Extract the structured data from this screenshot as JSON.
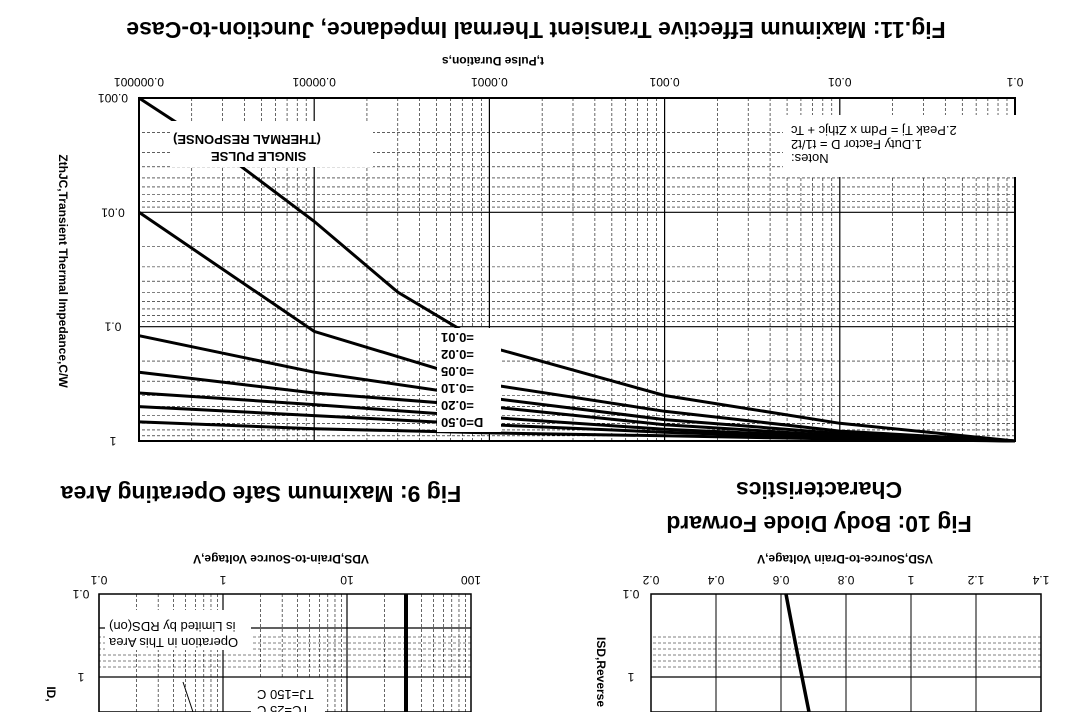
{
  "fig11": {
    "title": "Fig.11: Maximum Effective Transient Thermal Impedance, Junction-to-Case",
    "xlabel": "t,Pulse Duration,s",
    "ylabel": "ZthJC,Transient Thermal Impedance,C/W",
    "x_ticks": [
      "0.000001",
      "0.00001",
      "0.0001",
      "0.001",
      "0.01",
      "0.1"
    ],
    "y_ticks": [
      "0.001",
      "0.01",
      "0.1",
      "1"
    ],
    "single_pulse_1": "SINGLE PULSE",
    "single_pulse_2": "(THERMAL RESPONSE)",
    "notes_1": "Notes:",
    "notes_2": "1.Duty Factor D = t1/t2",
    "notes_3": "2.Peak Tj = Pdm x Zthjc + Tc",
    "duty_labels": [
      "D=0.50",
      "=0.20",
      "=0.10",
      "=0.05",
      "=0.02",
      "=0.01"
    ]
  },
  "fig9": {
    "title": "Fig 9: Maximum Safe Operating Area",
    "xlabel": "VDS,Drain-to-Source Voltage,V",
    "x_ticks": [
      "0.1",
      "1",
      "10",
      "100"
    ],
    "y_ticks": [
      "0.1",
      "1"
    ],
    "ylabel": "ID,",
    "region_1": "Operation in This Area",
    "region_2": "is Limited by RDS(on)",
    "cond_1": "TC=25 C",
    "cond_2": "TJ=150 C"
  },
  "fig10": {
    "title_1": "Fig 10: Body Diode Forward",
    "title_2": "Characteristics",
    "xlabel": "VSD,Source-to-Drain Voltage,V",
    "x_ticks": [
      "0.2",
      "0.4",
      "0.6",
      "0.8",
      "1",
      "1.2",
      "1.4"
    ],
    "y_ticks": [
      "0.1",
      "1"
    ],
    "ylabel": "ISD,Reverse"
  },
  "chart_data": [
    {
      "type": "line",
      "title": "Fig.11: Maximum Effective Transient Thermal Impedance, Junction-to-Case",
      "xlabel": "t,Pulse Duration,s",
      "ylabel": "ZthJC,Transient Thermal Impedance,C/W",
      "x_scale": "log",
      "y_scale": "log",
      "xlim": [
        1e-06,
        0.1
      ],
      "ylim": [
        0.001,
        1
      ],
      "series": [
        {
          "name": "SINGLE PULSE (THERMAL RESPONSE)",
          "x": [
            1e-06,
            3e-06,
            1e-05,
            3e-05,
            0.0001,
            0.001,
            0.01,
            0.1
          ],
          "y": [
            0.001,
            0.003,
            0.012,
            0.05,
            0.15,
            0.4,
            0.7,
            1
          ]
        },
        {
          "name": "D=0.01",
          "x": [
            1e-06,
            1e-05,
            0.0001,
            0.001,
            0.01,
            0.1
          ],
          "y": [
            0.01,
            0.11,
            0.32,
            0.55,
            0.82,
            1
          ]
        },
        {
          "name": "D=0.02",
          "x": [
            1e-06,
            1e-05,
            0.0001,
            0.001,
            0.01,
            0.1
          ],
          "y": [
            0.12,
            0.25,
            0.42,
            0.65,
            0.86,
            1
          ]
        },
        {
          "name": "D=0.05",
          "x": [
            1e-06,
            1e-05,
            0.0001,
            0.001,
            0.01,
            0.1
          ],
          "y": [
            0.25,
            0.38,
            0.5,
            0.72,
            0.9,
            1
          ]
        },
        {
          "name": "D=0.10",
          "x": [
            1e-06,
            1e-05,
            0.0001,
            0.001,
            0.01,
            0.1
          ],
          "y": [
            0.38,
            0.48,
            0.62,
            0.79,
            0.92,
            1
          ]
        },
        {
          "name": "D=0.20",
          "x": [
            1e-06,
            1e-05,
            0.0001,
            0.001,
            0.01,
            0.1
          ],
          "y": [
            0.5,
            0.6,
            0.72,
            0.84,
            0.94,
            1
          ]
        },
        {
          "name": "D=0.50",
          "x": [
            1e-06,
            1e-05,
            0.0001,
            0.001,
            0.01,
            0.1
          ],
          "y": [
            0.68,
            0.78,
            0.85,
            0.9,
            0.96,
            1
          ]
        }
      ]
    },
    {
      "type": "line",
      "title": "Fig 9: Maximum Safe Operating Area",
      "xlabel": "VDS,Drain-to-Source Voltage,V",
      "x_scale": "log",
      "y_scale": "log",
      "xlim": [
        0.1,
        100
      ],
      "ylim": [
        0.1,
        1
      ],
      "series": []
    },
    {
      "type": "line",
      "title": "Fig 10: Body Diode Forward Characteristics",
      "xlabel": "VSD,Source-to-Drain Voltage,V",
      "xlim": [
        0.2,
        1.4
      ],
      "ylim": [
        0.1,
        1
      ],
      "y_scale": "log",
      "series": [
        {
          "x": [
            0.6,
            0.65,
            0.7
          ],
          "y": [
            0.1,
            0.3,
            1
          ]
        }
      ]
    }
  ]
}
